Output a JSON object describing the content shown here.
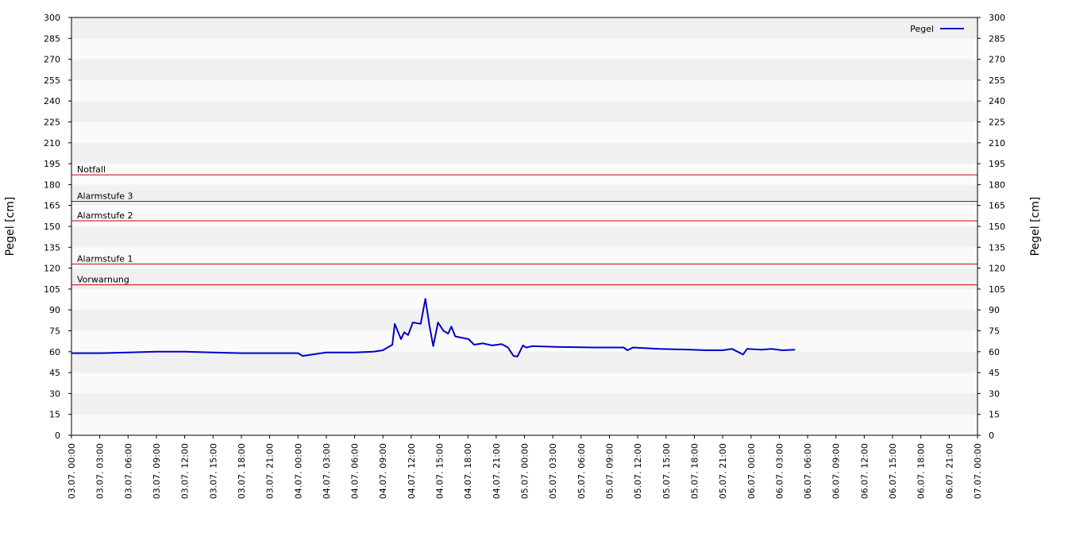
{
  "chart_data": {
    "type": "line",
    "ylabel": "Pegel [cm]",
    "y2label": "Pegel [cm]",
    "ylim": [
      0,
      300
    ],
    "yticks": [
      0,
      15,
      30,
      45,
      60,
      75,
      90,
      105,
      120,
      135,
      150,
      165,
      180,
      195,
      210,
      225,
      240,
      255,
      270,
      285,
      300
    ],
    "y2lim": [
      0,
      300
    ],
    "y2ticks": [
      0,
      15,
      30,
      45,
      60,
      75,
      90,
      105,
      120,
      135,
      150,
      165,
      180,
      195,
      210,
      225,
      240,
      255,
      270,
      285,
      300
    ],
    "xlim": [
      "03.07. 00:00",
      "07.07. 00:00"
    ],
    "xticks": [
      "03.07. 00:00",
      "03.07. 03:00",
      "03.07. 06:00",
      "03.07. 09:00",
      "03.07. 12:00",
      "03.07. 15:00",
      "03.07. 18:00",
      "03.07. 21:00",
      "04.07. 00:00",
      "04.07. 03:00",
      "04.07. 06:00",
      "04.07. 09:00",
      "04.07. 12:00",
      "04.07. 15:00",
      "04.07. 18:00",
      "04.07. 21:00",
      "05.07. 00:00",
      "05.07. 03:00",
      "05.07. 06:00",
      "05.07. 09:00",
      "05.07. 12:00",
      "05.07. 15:00",
      "05.07. 18:00",
      "05.07. 21:00",
      "06.07. 00:00",
      "06.07. 03:00",
      "06.07. 06:00",
      "06.07. 09:00",
      "06.07. 12:00",
      "06.07. 15:00",
      "06.07. 18:00",
      "06.07. 21:00",
      "07.07. 00:00"
    ],
    "grid": true,
    "legend": "upper right",
    "thresholds": [
      {
        "label": "Notfall",
        "value": 187,
        "color": "#cc0000"
      },
      {
        "label": "Alarmstufe 3",
        "value": 168,
        "color": "#cc0000"
      },
      {
        "label": "Alarmstufe 2",
        "value": 154,
        "color": "#cc0000"
      },
      {
        "label": "Alarmstufe 1",
        "value": 123,
        "color": "#cc0000"
      },
      {
        "label": "Vorwarnung",
        "value": 108,
        "color": "#cc0000"
      }
    ],
    "x": [
      "03.07. 00:00",
      "03.07. 03:00",
      "03.07. 06:00",
      "03.07. 09:00",
      "03.07. 12:00",
      "03.07. 15:00",
      "03.07. 18:00",
      "03.07. 21:00",
      "04.07. 00:00",
      "04.07. 00:30",
      "04.07. 03:00",
      "04.07. 06:00",
      "04.07. 08:00",
      "04.07. 09:00",
      "04.07. 10:00",
      "04.07. 10:15",
      "04.07. 10:55",
      "04.07. 11:15",
      "04.07. 11:40",
      "04.07. 12:10",
      "04.07. 13:00",
      "04.07. 13:30",
      "04.07. 13:55",
      "04.07. 14:20",
      "04.07. 14:50",
      "04.07. 15:25",
      "04.07. 15:55",
      "04.07. 16:15",
      "04.07. 16:40",
      "04.07. 18:05",
      "04.07. 18:40",
      "04.07. 19:35",
      "04.07. 20:35",
      "04.07. 21:35",
      "04.07. 22:15",
      "04.07. 22:50",
      "04.07. 23:15",
      "04.07. 23:50",
      "05.07. 00:10",
      "05.07. 00:50",
      "05.07. 03:20",
      "05.07. 07:30",
      "05.07. 10:30",
      "05.07. 10:55",
      "05.07. 11:30",
      "05.07. 14:15",
      "05.07. 17:35",
      "05.07. 19:20",
      "05.07. 21:00",
      "05.07. 22:00",
      "05.07. 23:10",
      "05.07. 23:35",
      "06.07. 01:10",
      "06.07. 02:10",
      "06.07. 03:20",
      "06.07. 04:40"
    ],
    "series": [
      {
        "name": "Pegel",
        "color": "#0000cc",
        "values": [
          59,
          59,
          59.5,
          60,
          60,
          59.5,
          59,
          59,
          59,
          57,
          59.5,
          59.5,
          60,
          61,
          65,
          80,
          69,
          74,
          72,
          81,
          80,
          98,
          79,
          64,
          81,
          75,
          73,
          78,
          71,
          69,
          65,
          66,
          64.5,
          65.5,
          63,
          57,
          56.5,
          64.5,
          63,
          64,
          63.5,
          63,
          63,
          61,
          63,
          62,
          61.5,
          61,
          61,
          62,
          58,
          62,
          61.5,
          62,
          61,
          61.5
        ]
      }
    ]
  }
}
